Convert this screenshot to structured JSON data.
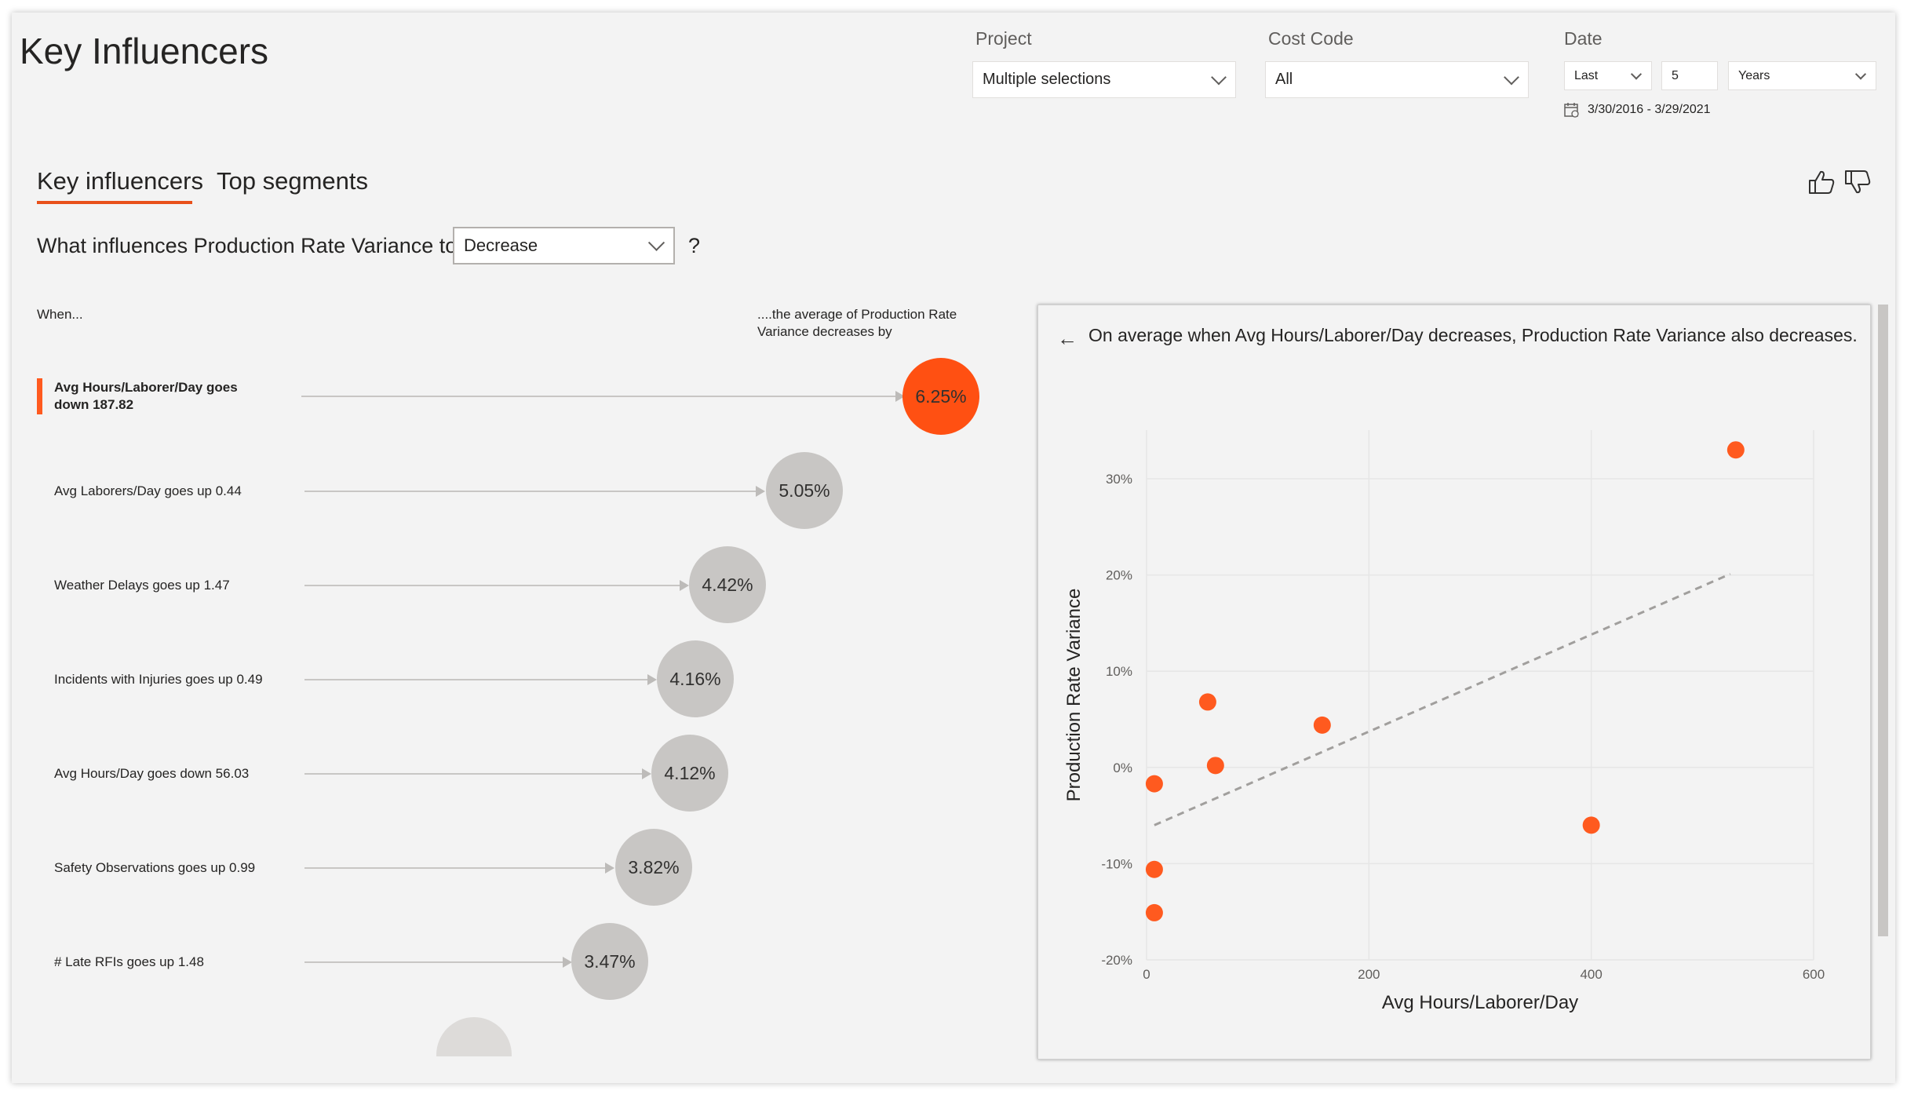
{
  "header": {
    "title": "Key Influencers"
  },
  "filters": {
    "project": {
      "label": "Project",
      "value": "Multiple selections"
    },
    "cost_code": {
      "label": "Cost Code",
      "value": "All"
    },
    "date": {
      "label": "Date",
      "mode": "Last",
      "count": "5",
      "unit": "Years",
      "range": "3/30/2016 - 3/29/2021"
    }
  },
  "tabs": [
    {
      "label": "Key influencers",
      "active": true
    },
    {
      "label": "Top segments",
      "active": false
    }
  ],
  "question": {
    "prefix": "What influences Production Rate Variance to",
    "selection": "Decrease",
    "suffix": "?"
  },
  "columns": {
    "left": "When...",
    "right": "....the average of Production Rate Variance decreases by"
  },
  "influencers": [
    {
      "label": "Avg Hours/Laborer/Day goes down 187.82",
      "value": "6.25%",
      "selected": true
    },
    {
      "label": "Avg Laborers/Day goes up 0.44",
      "value": "5.05%",
      "selected": false
    },
    {
      "label": "Weather Delays goes up 1.47",
      "value": "4.42%",
      "selected": false
    },
    {
      "label": "Incidents with Injuries goes up 0.49",
      "value": "4.16%",
      "selected": false
    },
    {
      "label": "Avg Hours/Day goes down 56.03",
      "value": "4.12%",
      "selected": false
    },
    {
      "label": "Safety Observations goes up 0.99",
      "value": "3.82%",
      "selected": false
    },
    {
      "label": "# Late RFIs goes up 1.48",
      "value": "3.47%",
      "selected": false
    }
  ],
  "detail": {
    "title": "On average when Avg Hours/Laborer/Day decreases, Production Rate Variance also decreases."
  },
  "colors": {
    "accent": "#ff5a1f",
    "bubble_grey": "#c8c6c4",
    "trend": "#a19f9d"
  },
  "icons": {
    "back": "arrow-left-icon",
    "like": "thumbs-up-icon",
    "dislike": "thumbs-down-icon",
    "calendar": "calendar-icon"
  },
  "chart_data": {
    "type": "scatter",
    "xlabel": "Avg Hours/Laborer/Day",
    "ylabel": "Production Rate Variance",
    "xlim": [
      0,
      600
    ],
    "ylim": [
      -20,
      35
    ],
    "xticks": [
      0,
      200,
      400,
      600
    ],
    "yticks": [
      -20,
      -10,
      0,
      10,
      20,
      30
    ],
    "ytick_labels": [
      "-20%",
      "-10%",
      "0%",
      "10%",
      "20%",
      "30%"
    ],
    "grid": true,
    "points": [
      {
        "x": 7,
        "y": -1.7
      },
      {
        "x": 7,
        "y": -10.6
      },
      {
        "x": 7,
        "y": -15.1
      },
      {
        "x": 55,
        "y": 6.8
      },
      {
        "x": 62,
        "y": 0.2
      },
      {
        "x": 158,
        "y": 4.4
      },
      {
        "x": 400,
        "y": -6.0
      },
      {
        "x": 530,
        "y": 33.0
      }
    ],
    "trendline": [
      {
        "x": 7,
        "y": -6.0
      },
      {
        "x": 525,
        "y": 20.1
      }
    ]
  }
}
